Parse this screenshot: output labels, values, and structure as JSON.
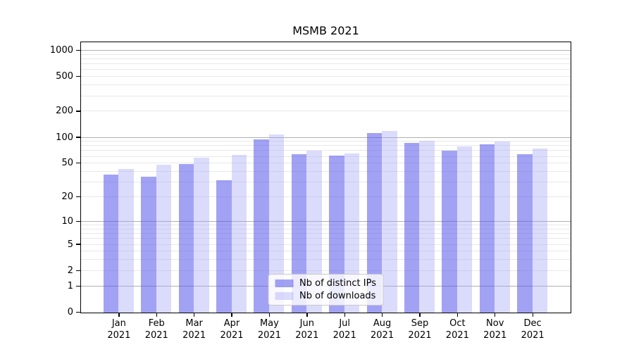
{
  "chart_data": {
    "type": "bar",
    "title": "MSMB 2021",
    "categories": [
      "Jan 2021",
      "Feb 2021",
      "Mar 2021",
      "Apr 2021",
      "May 2021",
      "Jun 2021",
      "Jul 2021",
      "Aug 2021",
      "Sep 2021",
      "Oct 2021",
      "Nov 2021",
      "Dec 2021"
    ],
    "series": [
      {
        "name": "Nb of distinct IPs",
        "color": "rgba(85,85,235,0.55)",
        "values": [
          37,
          35,
          49,
          32,
          96,
          64,
          62,
          112,
          87,
          70,
          83,
          64
        ]
      },
      {
        "name": "Nb of downloads",
        "color": "rgba(160,160,245,0.38)",
        "values": [
          43,
          48,
          58,
          63,
          108,
          70,
          66,
          120,
          92,
          79,
          90,
          75
        ]
      }
    ],
    "xlabel": "",
    "ylabel": "",
    "y_scale": "log(1+x)",
    "ylim": [
      0,
      1000
    ],
    "y_ticks": [
      0,
      1,
      2,
      5,
      10,
      20,
      50,
      100,
      200,
      500,
      1000
    ],
    "grid": {
      "major_lines": [
        1,
        10,
        100,
        1000
      ],
      "minor_lines": [
        2,
        3,
        4,
        5,
        6,
        7,
        8,
        9,
        20,
        30,
        40,
        50,
        60,
        70,
        80,
        90,
        200,
        300,
        400,
        500,
        600,
        700,
        800,
        900
      ],
      "major_color": "#b0b0b0",
      "minor_color": "#e8e8e8"
    },
    "axis_color": "#000000",
    "legend_position": "lower center"
  }
}
